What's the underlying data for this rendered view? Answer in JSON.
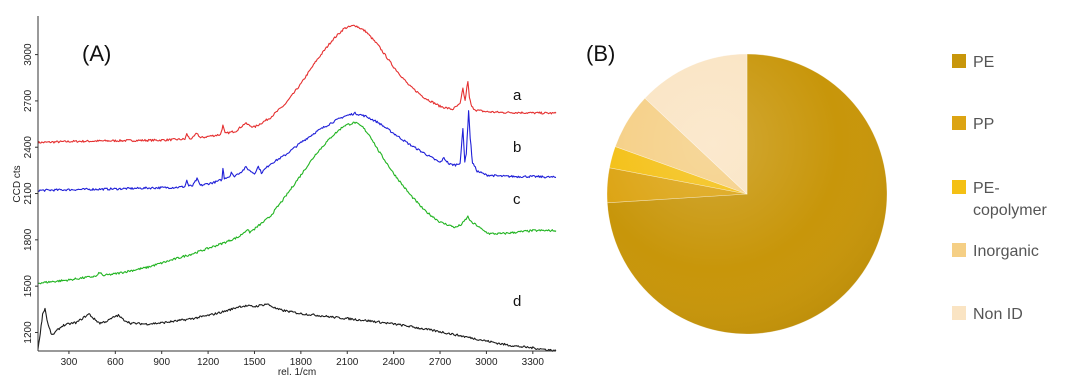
{
  "panels": {
    "a": "(A)",
    "b": "(B)"
  },
  "chart_data": [
    {
      "type": "line",
      "title": "",
      "xlabel": "rel. 1/cm",
      "ylabel": "CCD cts",
      "xlim": [
        100,
        3450
      ],
      "ylim": [
        1080,
        3250
      ],
      "xticks": [
        300,
        600,
        900,
        1200,
        1500,
        1800,
        2100,
        2400,
        2700,
        3000,
        3300
      ],
      "yticks": [
        1200,
        1500,
        1800,
        2100,
        2400,
        2700,
        3000
      ],
      "grid": false,
      "series": [
        {
          "name": "a",
          "color": "#e53030",
          "x": [
            100,
            300,
            600,
            900,
            1000,
            1050,
            1062,
            1080,
            1100,
            1128,
            1150,
            1200,
            1280,
            1296,
            1310,
            1380,
            1440,
            1470,
            1500,
            1600,
            1700,
            1800,
            1900,
            2000,
            2080,
            2150,
            2220,
            2300,
            2400,
            2500,
            2600,
            2700,
            2780,
            2830,
            2848,
            2862,
            2880,
            2890,
            2905,
            2935,
            3000,
            3100,
            3200,
            3300,
            3450
          ],
          "values": [
            2430,
            2437,
            2442,
            2446,
            2450,
            2452,
            2485,
            2456,
            2458,
            2492,
            2460,
            2470,
            2482,
            2540,
            2488,
            2505,
            2555,
            2540,
            2530,
            2590,
            2680,
            2810,
            2960,
            3090,
            3170,
            3190,
            3150,
            3060,
            2920,
            2800,
            2720,
            2665,
            2645,
            2680,
            2780,
            2700,
            2830,
            2720,
            2660,
            2640,
            2630,
            2625,
            2625,
            2622,
            2620
          ]
        },
        {
          "name": "b",
          "color": "#2020d8",
          "x": [
            100,
            300,
            600,
            900,
            1000,
            1050,
            1062,
            1075,
            1100,
            1128,
            1150,
            1250,
            1290,
            1296,
            1305,
            1340,
            1350,
            1365,
            1420,
            1445,
            1470,
            1500,
            1525,
            1545,
            1600,
            1700,
            1800,
            1900,
            2000,
            2080,
            2150,
            2220,
            2300,
            2400,
            2500,
            2600,
            2700,
            2725,
            2760,
            2800,
            2830,
            2848,
            2860,
            2870,
            2885,
            2895,
            2910,
            2940,
            3000,
            3100,
            3200,
            3300,
            3450
          ],
          "values": [
            2120,
            2125,
            2130,
            2138,
            2140,
            2145,
            2185,
            2148,
            2150,
            2195,
            2152,
            2175,
            2190,
            2265,
            2200,
            2210,
            2240,
            2210,
            2245,
            2270,
            2248,
            2230,
            2275,
            2235,
            2290,
            2350,
            2430,
            2500,
            2560,
            2600,
            2620,
            2600,
            2560,
            2490,
            2420,
            2360,
            2300,
            2330,
            2290,
            2285,
            2300,
            2520,
            2310,
            2360,
            2640,
            2460,
            2300,
            2245,
            2220,
            2212,
            2210,
            2210,
            2205
          ]
        },
        {
          "name": "c",
          "color": "#22b422",
          "x": [
            100,
            200,
            300,
            400,
            480,
            500,
            520,
            600,
            700,
            800,
            900,
            1000,
            1100,
            1200,
            1300,
            1400,
            1450,
            1470,
            1500,
            1600,
            1700,
            1800,
            1900,
            2000,
            2080,
            2150,
            2200,
            2250,
            2300,
            2400,
            2500,
            2600,
            2700,
            2800,
            2840,
            2880,
            2905,
            2930,
            2980,
            3020,
            3100,
            3200,
            3300,
            3450
          ],
          "values": [
            1520,
            1530,
            1540,
            1555,
            1565,
            1590,
            1568,
            1580,
            1600,
            1620,
            1650,
            1680,
            1710,
            1745,
            1780,
            1820,
            1865,
            1850,
            1870,
            1950,
            2080,
            2220,
            2360,
            2470,
            2540,
            2560,
            2530,
            2470,
            2380,
            2230,
            2100,
            1990,
            1915,
            1880,
            1900,
            1950,
            1910,
            1900,
            1860,
            1840,
            1840,
            1850,
            1860,
            1860
          ]
        },
        {
          "name": "d",
          "color": "#1c1c1c",
          "x": [
            100,
            115,
            130,
            145,
            165,
            190,
            220,
            260,
            300,
            350,
            400,
            430,
            460,
            500,
            550,
            600,
            620,
            650,
            700,
            800,
            900,
            1000,
            1100,
            1200,
            1300,
            1350,
            1400,
            1450,
            1500,
            1550,
            1580,
            1610,
            1650,
            1700,
            1800,
            1900,
            2000,
            2100,
            2200,
            2300,
            2400,
            2500,
            2600,
            2700,
            2800,
            2900,
            3000,
            3100,
            3200,
            3300,
            3380,
            3450
          ],
          "values": [
            1090,
            1200,
            1320,
            1355,
            1250,
            1180,
            1210,
            1245,
            1255,
            1265,
            1300,
            1320,
            1290,
            1260,
            1275,
            1305,
            1310,
            1285,
            1260,
            1255,
            1262,
            1275,
            1290,
            1310,
            1335,
            1350,
            1368,
            1372,
            1368,
            1378,
            1385,
            1370,
            1350,
            1340,
            1322,
            1312,
            1300,
            1290,
            1280,
            1268,
            1255,
            1240,
            1222,
            1205,
            1185,
            1165,
            1145,
            1125,
            1110,
            1100,
            1090,
            1082
          ]
        }
      ]
    },
    {
      "type": "pie",
      "title": "",
      "legend_position": "right",
      "categories": [
        "PE",
        "PP",
        "PE-copolymer",
        "Inorganic",
        "Non ID"
      ],
      "values": [
        74,
        4,
        2.5,
        6.5,
        13
      ],
      "colors": [
        "#c8960a",
        "#dca413",
        "#f4c014",
        "#f5cf85",
        "#fae4c3"
      ],
      "legend_labels": [
        {
          "line1": "PE",
          "line2": ""
        },
        {
          "line1": "PP",
          "line2": ""
        },
        {
          "line1": "PE-",
          "line2": "copolymer"
        },
        {
          "line1": "Inorganic",
          "line2": ""
        },
        {
          "line1": "Non ID",
          "line2": ""
        }
      ]
    }
  ]
}
